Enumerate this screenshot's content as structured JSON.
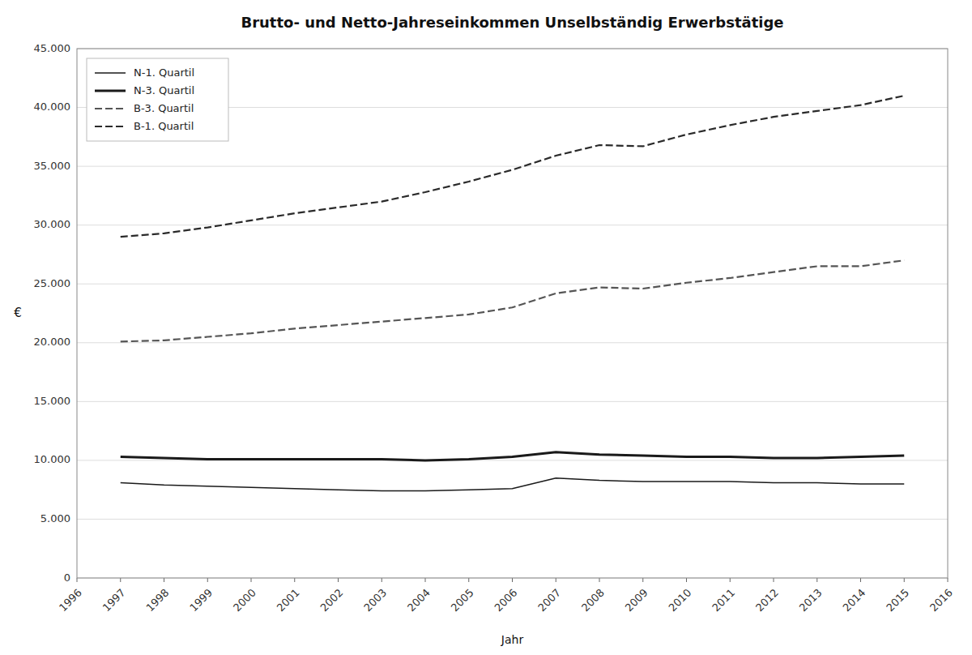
{
  "chart_data": {
    "type": "line",
    "title": "Brutto- und Netto-Jahreseinkommen Unselbständig Erwerbstätige",
    "xlabel": "Jahr",
    "ylabel": "€",
    "x": [
      1997,
      1998,
      1999,
      2000,
      2001,
      2002,
      2003,
      2004,
      2005,
      2006,
      2007,
      2008,
      2009,
      2010,
      2011,
      2012,
      2013,
      2014,
      2015
    ],
    "series": [
      {
        "name": "N-1. Quartil",
        "color": "#1a1a1a",
        "line_style": "solid",
        "values": [
          8100,
          7900,
          7800,
          7700,
          7600,
          7500,
          7400,
          7400,
          7500,
          7600,
          8500,
          8300,
          8200,
          8200,
          8200,
          8100,
          8100,
          8000,
          8000
        ]
      },
      {
        "name": "N-3. Quartil",
        "color": "#1a1a1a",
        "line_style": "solid",
        "values": [
          10300,
          10200,
          10100,
          10100,
          10100,
          10100,
          10100,
          10000,
          10100,
          10300,
          10700,
          10500,
          10400,
          10300,
          10300,
          10200,
          10200,
          10300,
          10400
        ]
      },
      {
        "name": "B-3. Quartil",
        "color": "#555555",
        "line_style": "dashed",
        "values": [
          20100,
          20200,
          20500,
          20800,
          21200,
          21500,
          21800,
          22100,
          22400,
          23000,
          24200,
          24700,
          24600,
          25100,
          25500,
          26000,
          26500,
          26500,
          27000
        ]
      },
      {
        "name": "B-1. Quartil",
        "color": "#2a2a2a",
        "line_style": "dashed",
        "values": [
          29000,
          29300,
          29800,
          30400,
          31000,
          31500,
          32000,
          32800,
          33700,
          34700,
          35900,
          36800,
          36700,
          37700,
          38500,
          39200,
          39700,
          40200,
          41000
        ]
      }
    ],
    "xlim": [
      1996,
      2016
    ],
    "xticks": [
      1996,
      1997,
      1998,
      1999,
      2000,
      2001,
      2002,
      2003,
      2004,
      2005,
      2006,
      2007,
      2008,
      2009,
      2010,
      2011,
      2012,
      2013,
      2014,
      2015,
      2016
    ],
    "ylim": [
      0,
      45000
    ],
    "yticks": [
      0,
      {
        "value": 5000,
        "label": "5.000"
      },
      {
        "value": 10000,
        "label": "10.000"
      },
      {
        "value": 15000,
        "label": "15.000"
      },
      {
        "value": 20000,
        "label": "20.000"
      },
      {
        "value": 25000,
        "label": "25.000"
      },
      {
        "value": 30000,
        "label": "30.000"
      },
      {
        "value": 35000,
        "label": "35.000"
      },
      {
        "value": 40000,
        "label": "40.000"
      },
      {
        "value": 45000,
        "label": "45.000"
      }
    ],
    "grid": true,
    "legend": "upper left"
  }
}
